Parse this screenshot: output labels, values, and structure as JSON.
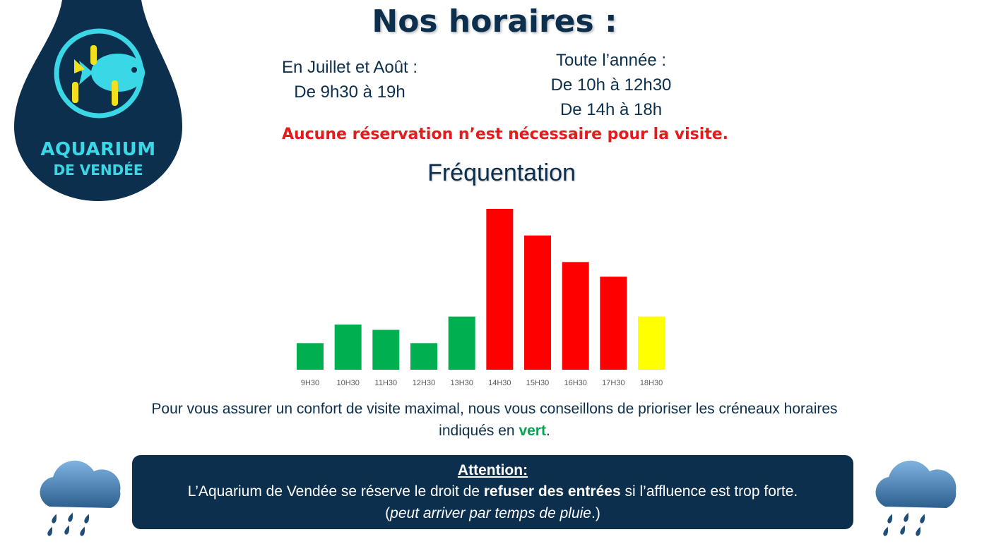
{
  "logo": {
    "line1": "AQUARIUM",
    "line2": "DE VENDÉE",
    "icon": "fish-logo-icon",
    "colors": {
      "drop": "#0b2f4d",
      "accent": "#3ad7e6",
      "yellow": "#f2e01c"
    }
  },
  "header": {
    "title": "Nos horaires :"
  },
  "schedule": {
    "summer": {
      "label": "En Juillet et Août :",
      "hours": "De 9h30 à 19h"
    },
    "year": {
      "label": "Toute l’année :",
      "morning": "De 10h à 12h30",
      "afternoon": "De 14h à 18h"
    }
  },
  "notice": "Aucune réservation n’est nécessaire pour la visite.",
  "chart_data": {
    "type": "bar",
    "title": "Fréquentation",
    "categories": [
      "9H30",
      "10H30",
      "11H30",
      "12H30",
      "13H30",
      "14H30",
      "15H30",
      "16H30",
      "17H30",
      "18H30"
    ],
    "values": [
      20,
      34,
      30,
      20,
      40,
      121,
      101,
      81,
      70,
      40
    ],
    "colors": [
      "#00b050",
      "#00b050",
      "#00b050",
      "#00b050",
      "#00b050",
      "#ff0000",
      "#ff0000",
      "#ff0000",
      "#ff0000",
      "#ffff00"
    ],
    "ylim": [
      0,
      121
    ],
    "grid": false,
    "legend": "none"
  },
  "advice": {
    "text": "Pour vous assurer un confort de visite maximal, nous vous conseillons de prioriser les créneaux horaires indiqués en",
    "highlight": "vert",
    "end": "."
  },
  "attention": {
    "heading": "Attention:",
    "part1": "L’Aquarium de Vendée se réserve le droit de",
    "bold": "refuser des entrées",
    "part2": "si l’affluence est trop forte. (",
    "italic": "peut arriver par temps de pluie",
    "part3": ".)"
  },
  "decor": {
    "left_icon": "rain-cloud-icon",
    "right_icon": "rain-cloud-icon"
  }
}
